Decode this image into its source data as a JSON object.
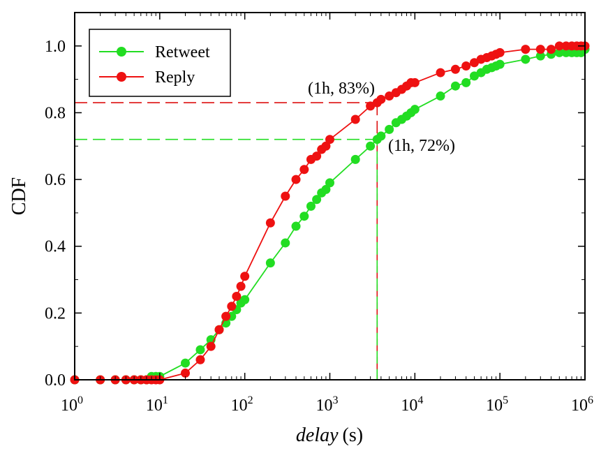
{
  "chart_data": {
    "type": "line",
    "title": "",
    "xlabel_italic": "delay",
    "xlabel_unit": "(s)",
    "ylabel": "CDF",
    "xscale": "log",
    "xlim": [
      1,
      1000000
    ],
    "ylim": [
      0,
      1.1
    ],
    "x_ticks": [
      {
        "base": "10",
        "exp": "0"
      },
      {
        "base": "10",
        "exp": "1"
      },
      {
        "base": "10",
        "exp": "2"
      },
      {
        "base": "10",
        "exp": "3"
      },
      {
        "base": "10",
        "exp": "4"
      },
      {
        "base": "10",
        "exp": "5"
      },
      {
        "base": "10",
        "exp": "6"
      }
    ],
    "y_ticks": [
      "0.0",
      "0.2",
      "0.4",
      "0.6",
      "0.8",
      "1.0"
    ],
    "legend_position": "top-left",
    "series": [
      {
        "name": "Retweet",
        "color": "#22dd22",
        "points": [
          [
            1,
            0
          ],
          [
            2,
            0
          ],
          [
            3,
            0
          ],
          [
            4,
            0
          ],
          [
            5,
            0
          ],
          [
            6,
            0
          ],
          [
            7,
            0
          ],
          [
            8,
            0.01
          ],
          [
            9,
            0.01
          ],
          [
            10,
            0.01
          ],
          [
            20,
            0.05
          ],
          [
            30,
            0.09
          ],
          [
            40,
            0.12
          ],
          [
            50,
            0.15
          ],
          [
            60,
            0.17
          ],
          [
            70,
            0.19
          ],
          [
            80,
            0.21
          ],
          [
            90,
            0.23
          ],
          [
            100,
            0.24
          ],
          [
            200,
            0.35
          ],
          [
            300,
            0.41
          ],
          [
            400,
            0.46
          ],
          [
            500,
            0.49
          ],
          [
            600,
            0.52
          ],
          [
            700,
            0.54
          ],
          [
            800,
            0.56
          ],
          [
            900,
            0.57
          ],
          [
            1000,
            0.59
          ],
          [
            2000,
            0.66
          ],
          [
            3000,
            0.7
          ],
          [
            3600,
            0.72
          ],
          [
            4000,
            0.73
          ],
          [
            5000,
            0.75
          ],
          [
            6000,
            0.77
          ],
          [
            7000,
            0.78
          ],
          [
            8000,
            0.79
          ],
          [
            9000,
            0.8
          ],
          [
            10000,
            0.81
          ],
          [
            20000,
            0.85
          ],
          [
            30000,
            0.88
          ],
          [
            40000,
            0.89
          ],
          [
            50000,
            0.91
          ],
          [
            60000,
            0.92
          ],
          [
            70000,
            0.93
          ],
          [
            80000,
            0.935
          ],
          [
            90000,
            0.94
          ],
          [
            100000,
            0.945
          ],
          [
            200000,
            0.96
          ],
          [
            300000,
            0.97
          ],
          [
            400000,
            0.975
          ],
          [
            500000,
            0.98
          ],
          [
            600000,
            0.98
          ],
          [
            700000,
            0.98
          ],
          [
            800000,
            0.98
          ],
          [
            900000,
            0.98
          ],
          [
            1000000,
            0.99
          ]
        ]
      },
      {
        "name": "Reply",
        "color": "#ee1111",
        "points": [
          [
            1,
            0
          ],
          [
            2,
            0
          ],
          [
            3,
            0
          ],
          [
            4,
            0
          ],
          [
            5,
            0
          ],
          [
            6,
            0
          ],
          [
            7,
            0
          ],
          [
            8,
            0
          ],
          [
            9,
            0
          ],
          [
            10,
            0
          ],
          [
            20,
            0.02
          ],
          [
            30,
            0.06
          ],
          [
            40,
            0.1
          ],
          [
            50,
            0.15
          ],
          [
            60,
            0.19
          ],
          [
            70,
            0.22
          ],
          [
            80,
            0.25
          ],
          [
            90,
            0.28
          ],
          [
            100,
            0.31
          ],
          [
            200,
            0.47
          ],
          [
            300,
            0.55
          ],
          [
            400,
            0.6
          ],
          [
            500,
            0.63
          ],
          [
            600,
            0.66
          ],
          [
            700,
            0.67
          ],
          [
            800,
            0.69
          ],
          [
            900,
            0.7
          ],
          [
            1000,
            0.72
          ],
          [
            2000,
            0.78
          ],
          [
            3000,
            0.82
          ],
          [
            3600,
            0.83
          ],
          [
            4000,
            0.84
          ],
          [
            5000,
            0.85
          ],
          [
            6000,
            0.86
          ],
          [
            7000,
            0.87
          ],
          [
            8000,
            0.88
          ],
          [
            9000,
            0.89
          ],
          [
            10000,
            0.89
          ],
          [
            20000,
            0.92
          ],
          [
            30000,
            0.93
          ],
          [
            40000,
            0.94
          ],
          [
            50000,
            0.95
          ],
          [
            60000,
            0.96
          ],
          [
            70000,
            0.965
          ],
          [
            80000,
            0.97
          ],
          [
            90000,
            0.975
          ],
          [
            100000,
            0.98
          ],
          [
            200000,
            0.99
          ],
          [
            300000,
            0.99
          ],
          [
            400000,
            0.99
          ],
          [
            500000,
            1.0
          ],
          [
            600000,
            1.0
          ],
          [
            700000,
            1.0
          ],
          [
            800000,
            1.0
          ],
          [
            900000,
            1.0
          ],
          [
            1000000,
            1.0
          ]
        ]
      }
    ],
    "annotations": [
      {
        "label": "(1h, 83%)",
        "x": 3600,
        "y": 0.83,
        "color": "#dd1111"
      },
      {
        "label": "(1h, 72%)",
        "x": 3600,
        "y": 0.72,
        "color": "#22dd22"
      }
    ]
  }
}
